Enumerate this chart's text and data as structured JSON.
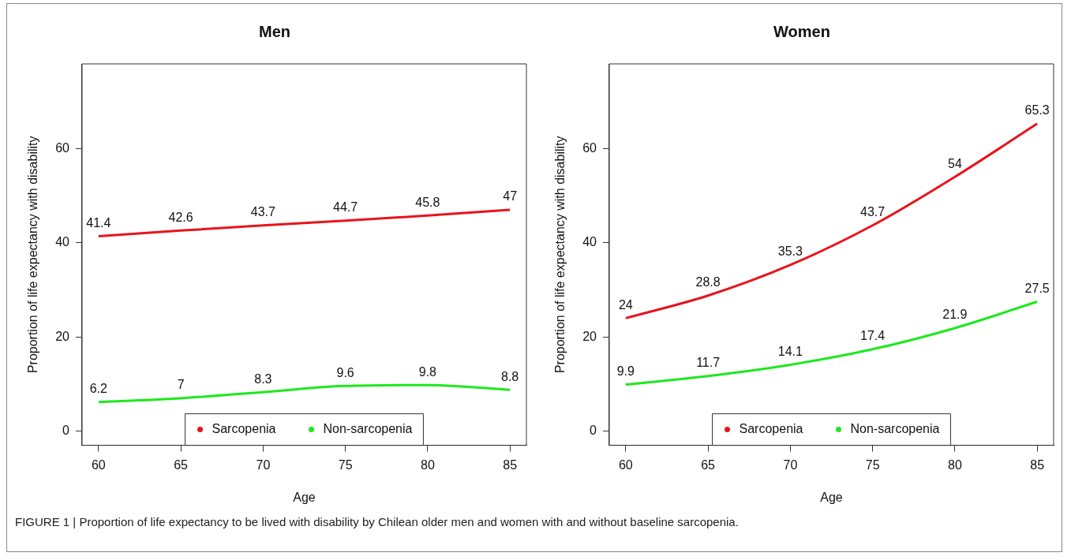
{
  "chart_data": [
    {
      "type": "line",
      "title": "Men",
      "xlabel": "Age",
      "ylabel": "Proportion of life expectancy with disability",
      "x": [
        60,
        65,
        70,
        75,
        80,
        85
      ],
      "series": [
        {
          "name": "Sarcopenia",
          "color": "#e8141c",
          "values": [
            41.4,
            42.6,
            43.7,
            44.7,
            45.8,
            47
          ]
        },
        {
          "name": "Non-sarcopenia",
          "color": "#1ee81e",
          "values": [
            6.2,
            7,
            8.3,
            9.6,
            9.8,
            8.8
          ]
        }
      ],
      "xlim": [
        59,
        86
      ],
      "xticks": [
        60,
        65,
        70,
        75,
        80,
        85
      ],
      "ylim": [
        -3,
        78
      ],
      "yticks": [
        0,
        20,
        40,
        60
      ],
      "grid": false,
      "legend": "bottom",
      "marker": "none",
      "line_style": "solid",
      "data_labels": true,
      "annotations": [
        "FIGURE 1 | Proportion of life expectancy to be lived with disability by Chilean older men and women with and without baseline sarcopenia."
      ]
    },
    {
      "type": "line",
      "title": "Women",
      "xlabel": "Age",
      "ylabel": "Proportion of life expectancy with disability",
      "x": [
        60,
        65,
        70,
        75,
        80,
        85
      ],
      "series": [
        {
          "name": "Sarcopenia",
          "color": "#e8141c",
          "values": [
            24,
            28.8,
            35.3,
            43.7,
            54,
            65.3
          ]
        },
        {
          "name": "Non-sarcopenia",
          "color": "#1ee81e",
          "values": [
            9.9,
            11.7,
            14.1,
            17.4,
            21.9,
            27.5
          ]
        }
      ],
      "xlim": [
        59,
        86
      ],
      "xticks": [
        60,
        65,
        70,
        75,
        80,
        85
      ],
      "ylim": [
        -3,
        78
      ],
      "yticks": [
        0,
        20,
        40,
        60
      ],
      "grid": false,
      "legend": "bottom",
      "marker": "none",
      "line_style": "solid",
      "data_labels": true
    }
  ]
}
